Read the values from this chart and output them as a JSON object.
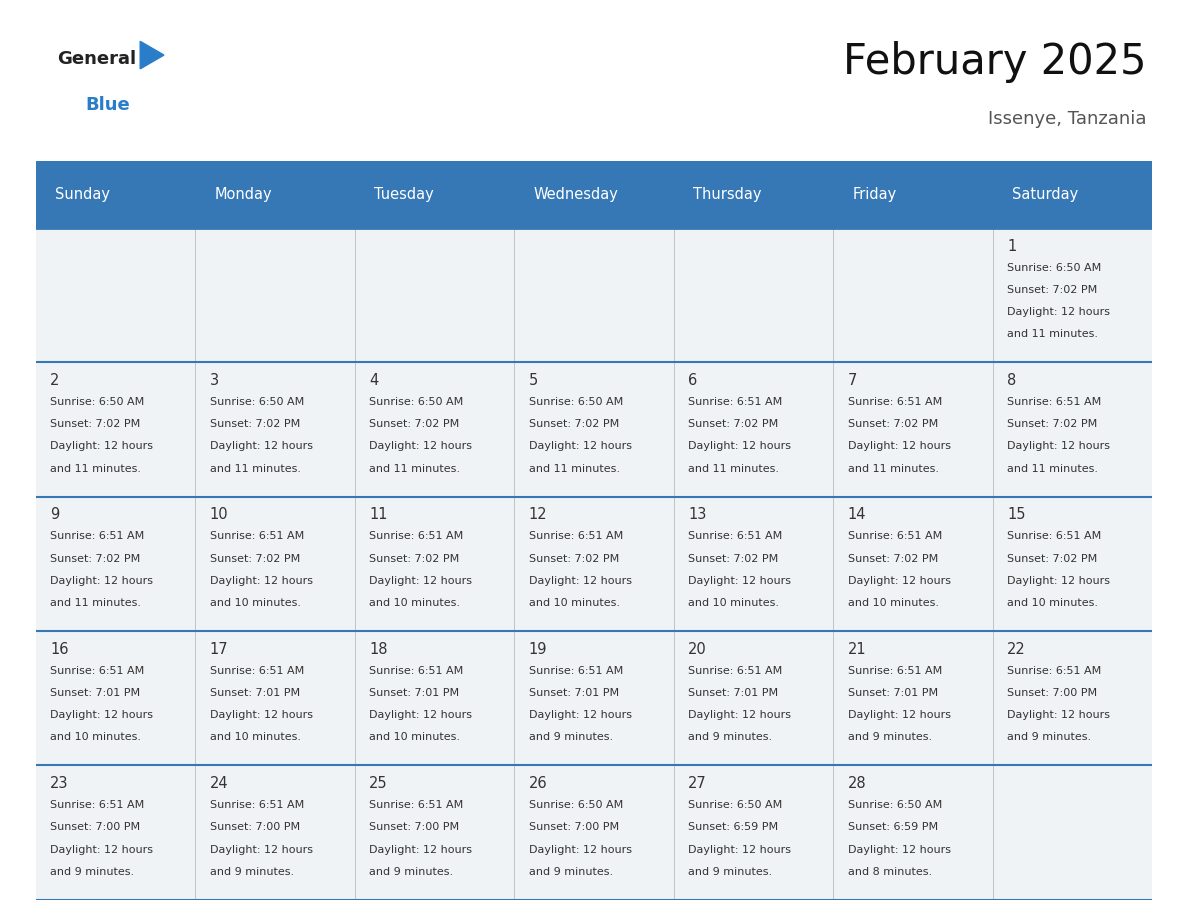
{
  "title": "February 2025",
  "subtitle": "Issenye, Tanzania",
  "header_color": "#3578b5",
  "header_text_color": "#ffffff",
  "day_names": [
    "Sunday",
    "Monday",
    "Tuesday",
    "Wednesday",
    "Thursday",
    "Friday",
    "Saturday"
  ],
  "background_color": "#ffffff",
  "cell_bg_light": "#f0f3f5",
  "separator_color": "#3578b5",
  "day_num_color": "#333333",
  "cell_text_color": "#333333",
  "days": [
    {
      "day": 1,
      "col": 6,
      "row": 0,
      "sunrise": "6:50 AM",
      "sunset": "7:02 PM",
      "daylight": "12 hours and 11 minutes"
    },
    {
      "day": 2,
      "col": 0,
      "row": 1,
      "sunrise": "6:50 AM",
      "sunset": "7:02 PM",
      "daylight": "12 hours and 11 minutes"
    },
    {
      "day": 3,
      "col": 1,
      "row": 1,
      "sunrise": "6:50 AM",
      "sunset": "7:02 PM",
      "daylight": "12 hours and 11 minutes"
    },
    {
      "day": 4,
      "col": 2,
      "row": 1,
      "sunrise": "6:50 AM",
      "sunset": "7:02 PM",
      "daylight": "12 hours and 11 minutes"
    },
    {
      "day": 5,
      "col": 3,
      "row": 1,
      "sunrise": "6:50 AM",
      "sunset": "7:02 PM",
      "daylight": "12 hours and 11 minutes"
    },
    {
      "day": 6,
      "col": 4,
      "row": 1,
      "sunrise": "6:51 AM",
      "sunset": "7:02 PM",
      "daylight": "12 hours and 11 minutes"
    },
    {
      "day": 7,
      "col": 5,
      "row": 1,
      "sunrise": "6:51 AM",
      "sunset": "7:02 PM",
      "daylight": "12 hours and 11 minutes"
    },
    {
      "day": 8,
      "col": 6,
      "row": 1,
      "sunrise": "6:51 AM",
      "sunset": "7:02 PM",
      "daylight": "12 hours and 11 minutes"
    },
    {
      "day": 9,
      "col": 0,
      "row": 2,
      "sunrise": "6:51 AM",
      "sunset": "7:02 PM",
      "daylight": "12 hours and 11 minutes"
    },
    {
      "day": 10,
      "col": 1,
      "row": 2,
      "sunrise": "6:51 AM",
      "sunset": "7:02 PM",
      "daylight": "12 hours and 10 minutes"
    },
    {
      "day": 11,
      "col": 2,
      "row": 2,
      "sunrise": "6:51 AM",
      "sunset": "7:02 PM",
      "daylight": "12 hours and 10 minutes"
    },
    {
      "day": 12,
      "col": 3,
      "row": 2,
      "sunrise": "6:51 AM",
      "sunset": "7:02 PM",
      "daylight": "12 hours and 10 minutes"
    },
    {
      "day": 13,
      "col": 4,
      "row": 2,
      "sunrise": "6:51 AM",
      "sunset": "7:02 PM",
      "daylight": "12 hours and 10 minutes"
    },
    {
      "day": 14,
      "col": 5,
      "row": 2,
      "sunrise": "6:51 AM",
      "sunset": "7:02 PM",
      "daylight": "12 hours and 10 minutes"
    },
    {
      "day": 15,
      "col": 6,
      "row": 2,
      "sunrise": "6:51 AM",
      "sunset": "7:02 PM",
      "daylight": "12 hours and 10 minutes"
    },
    {
      "day": 16,
      "col": 0,
      "row": 3,
      "sunrise": "6:51 AM",
      "sunset": "7:01 PM",
      "daylight": "12 hours and 10 minutes"
    },
    {
      "day": 17,
      "col": 1,
      "row": 3,
      "sunrise": "6:51 AM",
      "sunset": "7:01 PM",
      "daylight": "12 hours and 10 minutes"
    },
    {
      "day": 18,
      "col": 2,
      "row": 3,
      "sunrise": "6:51 AM",
      "sunset": "7:01 PM",
      "daylight": "12 hours and 10 minutes"
    },
    {
      "day": 19,
      "col": 3,
      "row": 3,
      "sunrise": "6:51 AM",
      "sunset": "7:01 PM",
      "daylight": "12 hours and 9 minutes"
    },
    {
      "day": 20,
      "col": 4,
      "row": 3,
      "sunrise": "6:51 AM",
      "sunset": "7:01 PM",
      "daylight": "12 hours and 9 minutes"
    },
    {
      "day": 21,
      "col": 5,
      "row": 3,
      "sunrise": "6:51 AM",
      "sunset": "7:01 PM",
      "daylight": "12 hours and 9 minutes"
    },
    {
      "day": 22,
      "col": 6,
      "row": 3,
      "sunrise": "6:51 AM",
      "sunset": "7:00 PM",
      "daylight": "12 hours and 9 minutes"
    },
    {
      "day": 23,
      "col": 0,
      "row": 4,
      "sunrise": "6:51 AM",
      "sunset": "7:00 PM",
      "daylight": "12 hours and 9 minutes"
    },
    {
      "day": 24,
      "col": 1,
      "row": 4,
      "sunrise": "6:51 AM",
      "sunset": "7:00 PM",
      "daylight": "12 hours and 9 minutes"
    },
    {
      "day": 25,
      "col": 2,
      "row": 4,
      "sunrise": "6:51 AM",
      "sunset": "7:00 PM",
      "daylight": "12 hours and 9 minutes"
    },
    {
      "day": 26,
      "col": 3,
      "row": 4,
      "sunrise": "6:50 AM",
      "sunset": "7:00 PM",
      "daylight": "12 hours and 9 minutes"
    },
    {
      "day": 27,
      "col": 4,
      "row": 4,
      "sunrise": "6:50 AM",
      "sunset": "6:59 PM",
      "daylight": "12 hours and 9 minutes"
    },
    {
      "day": 28,
      "col": 5,
      "row": 4,
      "sunrise": "6:50 AM",
      "sunset": "6:59 PM",
      "daylight": "12 hours and 8 minutes"
    }
  ]
}
